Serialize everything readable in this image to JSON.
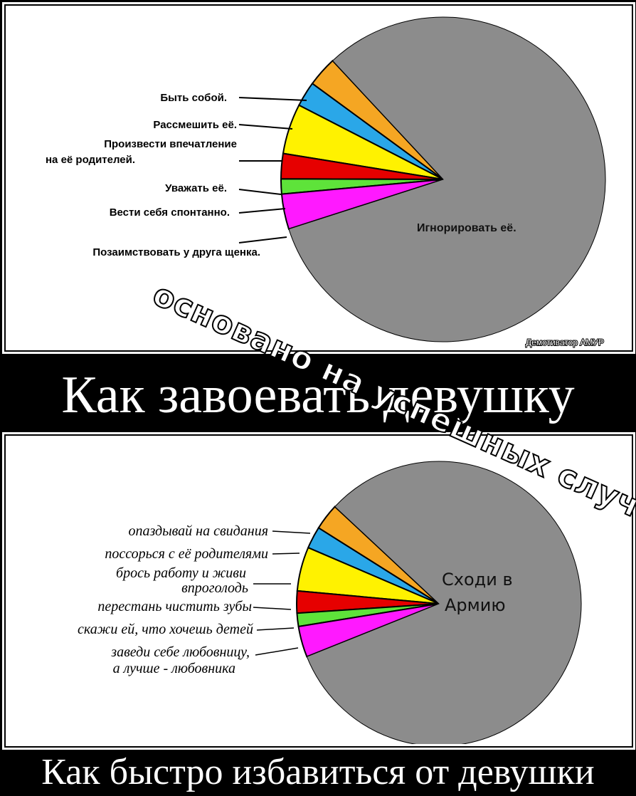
{
  "colors": {
    "background": "#000000",
    "panel": "#ffffff",
    "ignore_slice": "#8c8c8c",
    "orange": "#f5a623",
    "blue": "#2aa7e8",
    "yellow": "#fff200",
    "red": "#e60000",
    "green": "#5ee33a",
    "magenta": "#ff19ff"
  },
  "top_chart": {
    "labels": [
      "Быть собой.",
      "Рассмешить её.",
      "Произвести впечатление",
      "на её родителей.",
      "Уважать её.",
      "Вести себя спонтанно.",
      "Позаимствовать у друга щенка."
    ],
    "main_label": "Игнорировать её.",
    "credit": "Демотиватор АМУР"
  },
  "top_caption": "Как завоевать девушку",
  "watermark": "основано на успешных случаях",
  "bottom_chart": {
    "labels": [
      "опаздывай на свидания",
      "поссорься с её родителями",
      "брось работу и живи",
      "впроголодь",
      "перестань чистить зубы",
      "скажи ей, что хочешь детей",
      "заведи себе любовницу,",
      "а лучше - любовника"
    ],
    "main_label_line1": "Сходи в",
    "main_label_line2": "Армию"
  },
  "bottom_caption": "Как быстро избавиться от девушки",
  "chart_data": [
    {
      "type": "pie",
      "labels": [
        "Быть собой.",
        "Рассмешить её.",
        "Произвести впечатление на её родителей.",
        "Уважать её.",
        "Вести себя спонтанно.",
        "Позаимствовать у друга щенка.",
        "Игнорировать её."
      ],
      "values": [
        3,
        2.5,
        5,
        2.5,
        1.5,
        3.5,
        82
      ]
    },
    {
      "type": "pie",
      "labels": [
        "опаздывай на свидания",
        "поссорься с её родителями",
        "брось работу и живи впроголодь",
        "перестань чистить зубы",
        "скажи ей, что хочешь детей",
        "заведи себе любовницу, а лучше - любовника",
        "Сходи в Армию"
      ],
      "values": [
        3,
        2.5,
        5,
        2.5,
        1.5,
        3.5,
        82
      ]
    }
  ]
}
